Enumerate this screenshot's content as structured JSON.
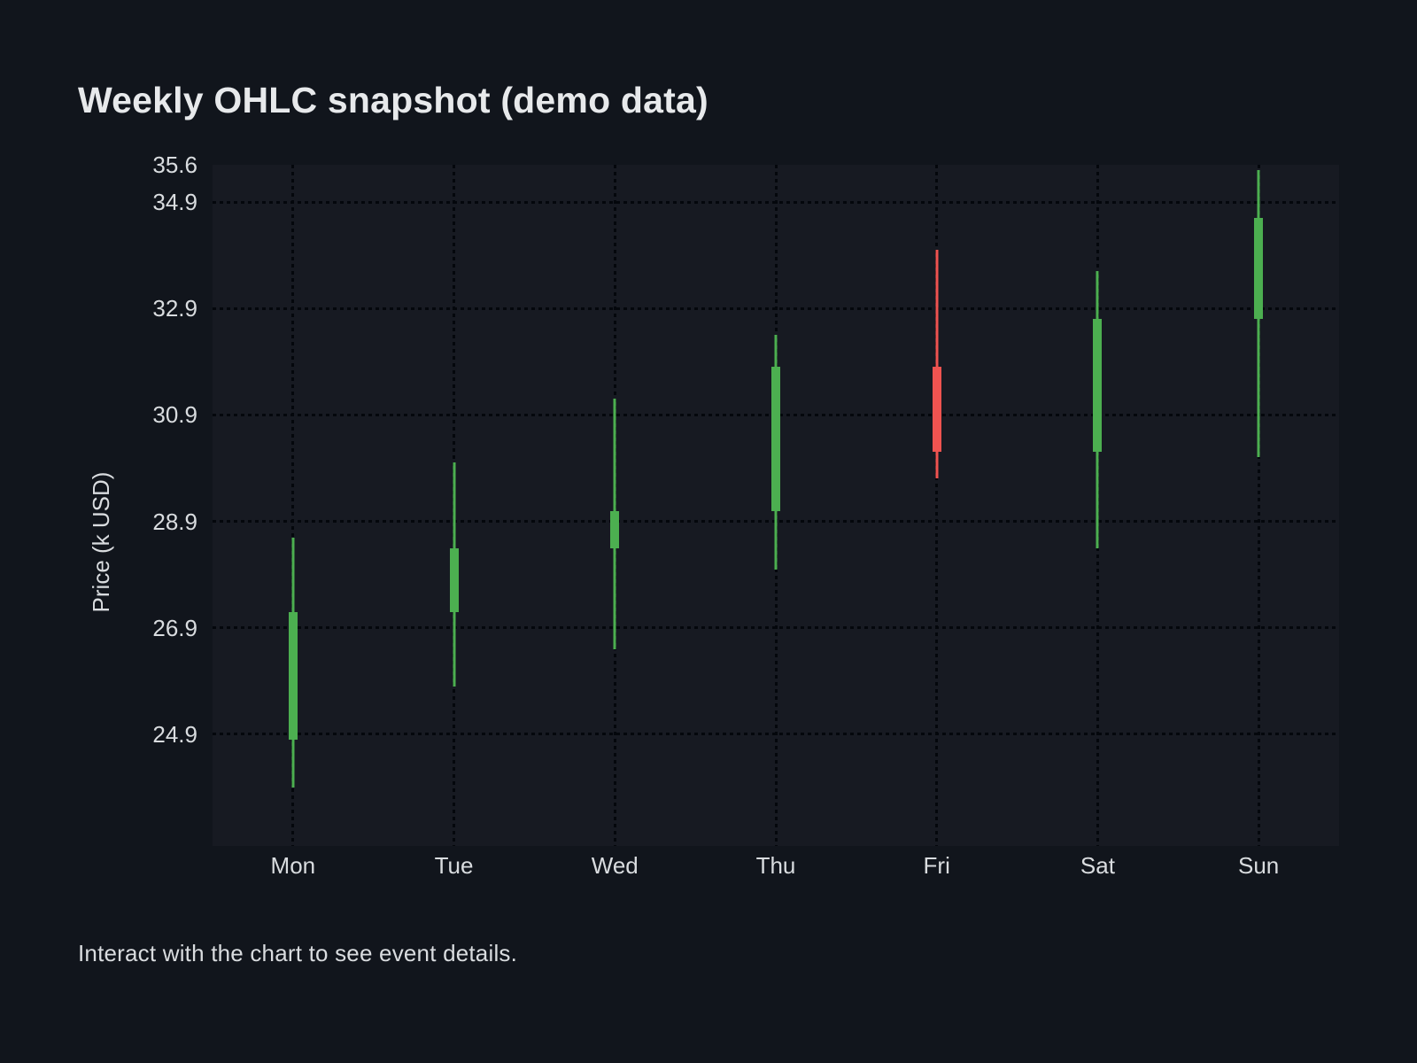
{
  "chart_data": {
    "type": "candlestick",
    "title": "Weekly OHLC snapshot (demo data)",
    "ylabel": "Price (k USD)",
    "xlabel": "",
    "categories": [
      "Mon",
      "Tue",
      "Wed",
      "Thu",
      "Fri",
      "Sat",
      "Sun"
    ],
    "series": [
      {
        "day": "Mon",
        "open": 24.8,
        "high": 28.6,
        "low": 23.9,
        "close": 27.2,
        "direction": "up"
      },
      {
        "day": "Tue",
        "open": 27.2,
        "high": 30.0,
        "low": 25.8,
        "close": 28.4,
        "direction": "up"
      },
      {
        "day": "Wed",
        "open": 28.4,
        "high": 31.2,
        "low": 26.5,
        "close": 29.1,
        "direction": "up"
      },
      {
        "day": "Thu",
        "open": 29.1,
        "high": 32.4,
        "low": 28.0,
        "close": 31.8,
        "direction": "up"
      },
      {
        "day": "Fri",
        "open": 31.8,
        "high": 34.0,
        "low": 29.7,
        "close": 30.2,
        "direction": "down"
      },
      {
        "day": "Sat",
        "open": 30.2,
        "high": 33.6,
        "low": 28.4,
        "close": 32.7,
        "direction": "up"
      },
      {
        "day": "Sun",
        "open": 32.7,
        "high": 35.5,
        "low": 30.1,
        "close": 34.6,
        "direction": "up"
      }
    ],
    "y_ticks": [
      {
        "label": "35.6",
        "value": 35.6,
        "grid": false
      },
      {
        "label": "34.9",
        "value": 34.9,
        "grid": true
      },
      {
        "label": "32.9",
        "value": 32.9,
        "grid": true
      },
      {
        "label": "30.9",
        "value": 30.9,
        "grid": true
      },
      {
        "label": "28.9",
        "value": 28.9,
        "grid": true
      },
      {
        "label": "26.9",
        "value": 26.9,
        "grid": true
      },
      {
        "label": "24.9",
        "value": 24.9,
        "grid": true
      }
    ],
    "ylim": [
      22.8,
      35.6
    ],
    "grid_style": "dotted",
    "legend": "none",
    "colors": {
      "up": "#4caf50",
      "down": "#ef5350",
      "grid": "#04070c",
      "page_bg": "#11151c",
      "plot_bg": "#171a22",
      "text": "#d9dcdf",
      "title_text": "#e7e9eb"
    }
  },
  "footer": {
    "text": "Interact with the chart to see event details."
  }
}
